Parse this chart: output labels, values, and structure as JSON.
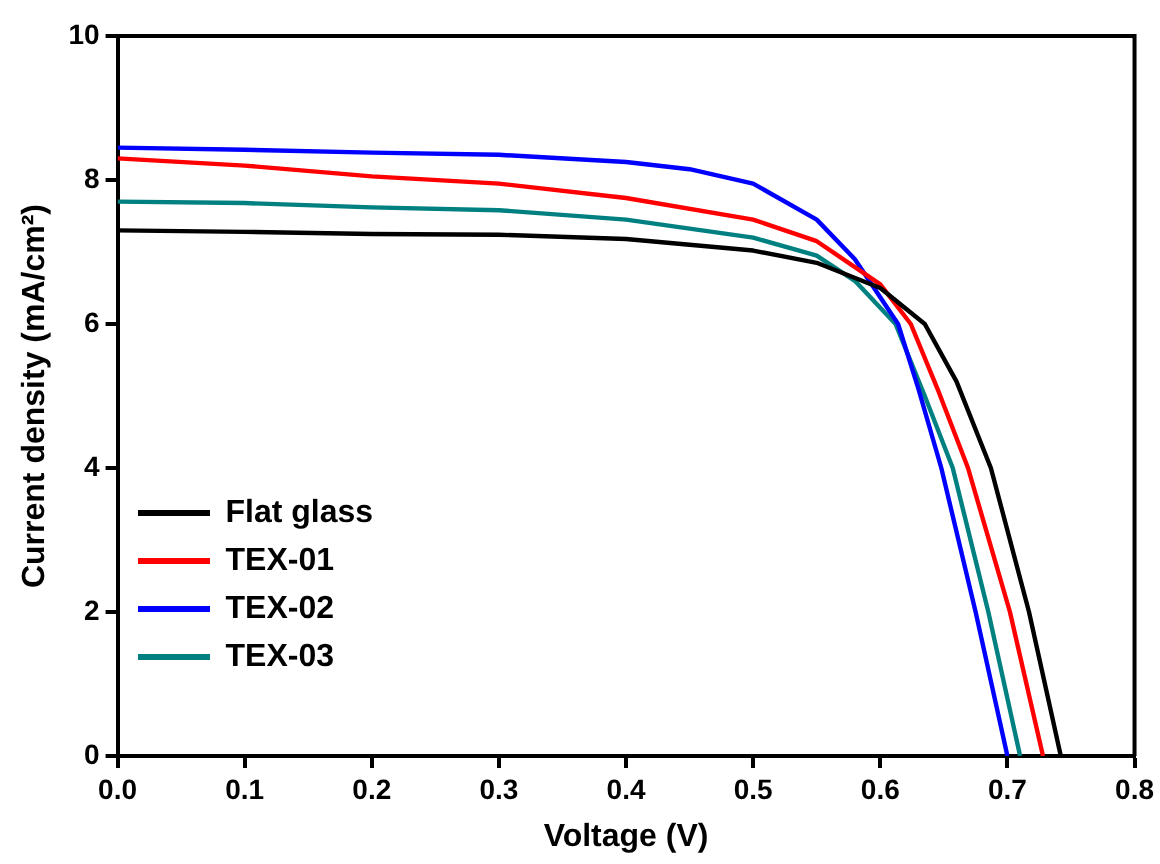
{
  "chart_data": {
    "type": "line",
    "xlabel": "Voltage (V)",
    "ylabel": "Current density (mA/cm²)",
    "xlim": [
      0,
      0.8
    ],
    "xticks": [
      {
        "value": 0,
        "label": "0.0"
      },
      {
        "value": 0.1,
        "label": "0.1"
      },
      {
        "value": 0.2,
        "label": "0.2"
      },
      {
        "value": 0.3,
        "label": "0.3"
      },
      {
        "value": 0.4,
        "label": "0.4"
      },
      {
        "value": 0.5,
        "label": "0.5"
      },
      {
        "value": 0.6,
        "label": "0.6"
      },
      {
        "value": 0.7,
        "label": "0.7"
      },
      {
        "value": 0.8,
        "label": "0.8"
      }
    ],
    "ylim": [
      0,
      10
    ],
    "yticks": [
      0,
      2,
      4,
      6,
      8,
      10
    ],
    "grid": false,
    "legend": "left",
    "marker": "none",
    "line_style": "solid",
    "series": [
      {
        "name": "Flat glass",
        "color": "#000000",
        "x": [
          0,
          0.1,
          0.2,
          0.3,
          0.4,
          0.5,
          0.55,
          0.6,
          0.635,
          0.66,
          0.687,
          0.717,
          0.742
        ],
        "values": [
          7.3,
          7.28,
          7.25,
          7.24,
          7.18,
          7.02,
          6.85,
          6.5,
          6,
          5.2,
          4,
          2,
          0
        ]
      },
      {
        "name": "TEX-01",
        "color": "#ff0000",
        "x": [
          0,
          0.1,
          0.2,
          0.3,
          0.4,
          0.5,
          0.55,
          0.6,
          0.624,
          0.645,
          0.669,
          0.702,
          0.728
        ],
        "values": [
          8.3,
          8.2,
          8.05,
          7.95,
          7.75,
          7.45,
          7.15,
          6.55,
          6,
          5.1,
          4,
          2,
          0
        ]
      },
      {
        "name": "TEX-02",
        "color": "#0000ff",
        "x": [
          0,
          0.1,
          0.2,
          0.3,
          0.4,
          0.45,
          0.5,
          0.55,
          0.58,
          0.614,
          0.63,
          0.648,
          0.675,
          0.7
        ],
        "values": [
          8.45,
          8.42,
          8.38,
          8.35,
          8.25,
          8.15,
          7.95,
          7.45,
          6.9,
          6,
          5.1,
          4,
          2,
          0
        ]
      },
      {
        "name": "TEX-03",
        "color": "#008080",
        "x": [
          0,
          0.1,
          0.2,
          0.3,
          0.4,
          0.5,
          0.55,
          0.58,
          0.612,
          0.635,
          0.657,
          0.685,
          0.71
        ],
        "values": [
          7.7,
          7.68,
          7.62,
          7.58,
          7.45,
          7.2,
          6.95,
          6.6,
          6,
          5,
          4,
          2,
          0
        ]
      }
    ]
  }
}
